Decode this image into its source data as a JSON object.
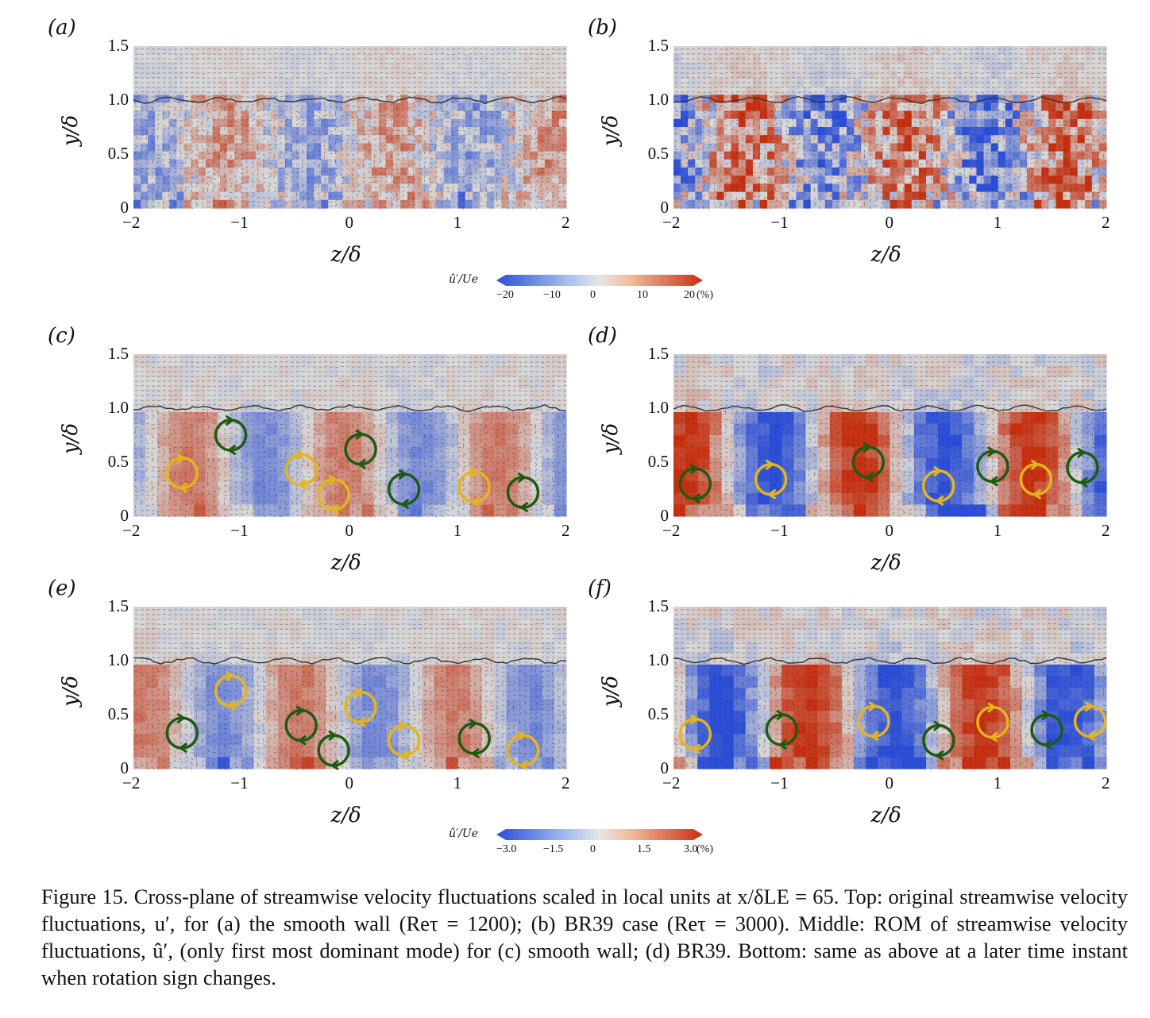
{
  "panels": [
    {
      "id": "a",
      "label": "(a)",
      "yticks": [
        "1.5",
        "1.0",
        "0.5",
        "0"
      ],
      "xticks": [
        "−2",
        "−1",
        "0",
        "1",
        "2"
      ],
      "ylabel": "y/δ",
      "xlabel": "z/δ"
    },
    {
      "id": "b",
      "label": "(b)",
      "yticks": [
        "1.5",
        "1.0",
        "0.5",
        "0"
      ],
      "xticks": [
        "−2",
        "−1",
        "0",
        "1",
        "2"
      ],
      "ylabel": "y/δ",
      "xlabel": "z/δ"
    },
    {
      "id": "c",
      "label": "(c)",
      "yticks": [
        "1.5",
        "1.0",
        "0.5",
        "0"
      ],
      "xticks": [
        "−2",
        "−1",
        "0",
        "1",
        "2"
      ],
      "ylabel": "y/δ",
      "xlabel": "z/δ"
    },
    {
      "id": "d",
      "label": "(d)",
      "yticks": [
        "1.5",
        "1.0",
        "0.5",
        "0"
      ],
      "xticks": [
        "−2",
        "−1",
        "0",
        "1",
        "2"
      ],
      "ylabel": "y/δ",
      "xlabel": "z/δ"
    },
    {
      "id": "e",
      "label": "(e)",
      "yticks": [
        "1.5",
        "1.0",
        "0.5",
        "0"
      ],
      "xticks": [
        "−2",
        "−1",
        "0",
        "1",
        "2"
      ],
      "ylabel": "y/δ",
      "xlabel": "z/δ"
    },
    {
      "id": "f",
      "label": "(f)",
      "yticks": [
        "1.5",
        "1.0",
        "0.5",
        "0"
      ],
      "xticks": [
        "−2",
        "−1",
        "0",
        "1",
        "2"
      ],
      "ylabel": "y/δ",
      "xlabel": "z/δ"
    }
  ],
  "colorbars": [
    {
      "label": "û′/Ue",
      "ticks": [
        "−20",
        "−10",
        "0",
        "10",
        "20"
      ],
      "unit": "(%)"
    },
    {
      "label": "û′/Ue",
      "ticks": [
        "−3.0",
        "−1.5",
        "0",
        "1.5",
        "3.0"
      ],
      "unit": "(%)"
    }
  ],
  "colors": {
    "blue": "#2b4fd9",
    "red": "#c8300f",
    "vortex_green": "#1e5a12",
    "vortex_yellow": "#e4b51c",
    "bg": "#d8d8d8"
  },
  "vortices": {
    "c": [
      {
        "z": -1.55,
        "y": 0.4,
        "color": "yellow"
      },
      {
        "z": -1.1,
        "y": 0.75,
        "color": "green"
      },
      {
        "z": -0.45,
        "y": 0.43,
        "color": "yellow"
      },
      {
        "z": -0.15,
        "y": 0.2,
        "color": "yellow"
      },
      {
        "z": 0.1,
        "y": 0.62,
        "color": "green"
      },
      {
        "z": 0.5,
        "y": 0.25,
        "color": "green"
      },
      {
        "z": 1.15,
        "y": 0.27,
        "color": "yellow"
      },
      {
        "z": 1.6,
        "y": 0.22,
        "color": "green"
      }
    ],
    "d": [
      {
        "z": -1.8,
        "y": 0.3,
        "color": "green"
      },
      {
        "z": -1.1,
        "y": 0.34,
        "color": "yellow"
      },
      {
        "z": -0.2,
        "y": 0.5,
        "color": "green"
      },
      {
        "z": 0.45,
        "y": 0.28,
        "color": "yellow"
      },
      {
        "z": 0.95,
        "y": 0.46,
        "color": "green"
      },
      {
        "z": 1.35,
        "y": 0.34,
        "color": "yellow"
      },
      {
        "z": 1.78,
        "y": 0.45,
        "color": "green"
      }
    ],
    "e": [
      {
        "z": -1.55,
        "y": 0.33,
        "color": "green"
      },
      {
        "z": -1.1,
        "y": 0.72,
        "color": "yellow"
      },
      {
        "z": -0.45,
        "y": 0.4,
        "color": "green"
      },
      {
        "z": -0.15,
        "y": 0.17,
        "color": "green"
      },
      {
        "z": 0.1,
        "y": 0.57,
        "color": "yellow"
      },
      {
        "z": 0.5,
        "y": 0.26,
        "color": "yellow"
      },
      {
        "z": 1.15,
        "y": 0.28,
        "color": "green"
      },
      {
        "z": 1.6,
        "y": 0.17,
        "color": "yellow"
      }
    ],
    "f": [
      {
        "z": -1.8,
        "y": 0.32,
        "color": "yellow"
      },
      {
        "z": -1.0,
        "y": 0.36,
        "color": "green"
      },
      {
        "z": -0.15,
        "y": 0.44,
        "color": "yellow"
      },
      {
        "z": 0.45,
        "y": 0.26,
        "color": "green"
      },
      {
        "z": 0.95,
        "y": 0.43,
        "color": "yellow"
      },
      {
        "z": 1.45,
        "y": 0.36,
        "color": "green"
      },
      {
        "z": 1.85,
        "y": 0.44,
        "color": "yellow"
      }
    ]
  },
  "caption": "Figure 15. Cross-plane of streamwise velocity fluctuations scaled in local units at x/δLE = 65. Top: original streamwise velocity fluctuations, u′, for (a) the smooth wall (Reτ = 1200); (b) BR39 case (Reτ = 3000). Middle: ROM of streamwise velocity fluctuations, û′, (only first most dominant mode) for (c) smooth wall; (d) BR39. Bottom: same as above at a later time instant when rotation sign changes."
}
